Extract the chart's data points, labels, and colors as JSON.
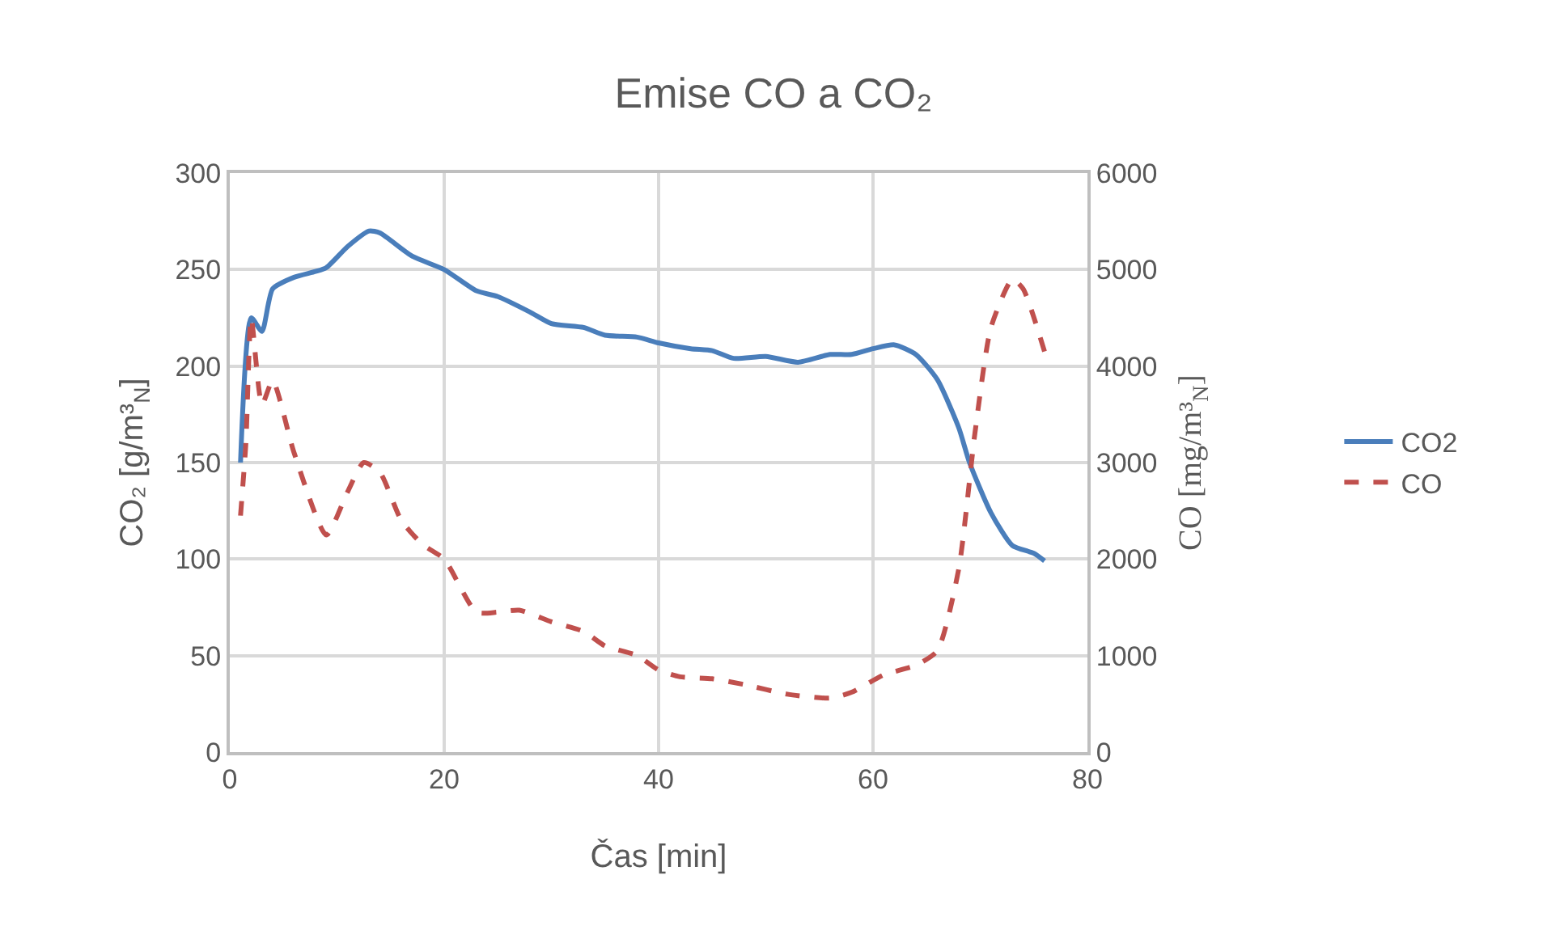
{
  "chart_data": {
    "type": "line",
    "title": "Emise CO a CO₂",
    "xlabel": "Čas [min]",
    "ylabel": "CO₂ [g/m³$_{N}$]",
    "y2label": "CO [mg/m³$_{N}$]",
    "xlim": [
      0,
      80
    ],
    "xticks": [
      0,
      20,
      40,
      60,
      80
    ],
    "ylim": [
      0,
      300
    ],
    "yticks": [
      0,
      50,
      100,
      150,
      200,
      250,
      300
    ],
    "y2lim": [
      0,
      6000
    ],
    "y2ticks": [
      0,
      1000,
      2000,
      3000,
      4000,
      5000,
      6000
    ],
    "grid": true,
    "legend": "right",
    "marker": "none",
    "series": [
      {
        "name": "CO2",
        "color": "#4a7ebb",
        "line_style": "solid",
        "x": [
          1,
          2,
          3,
          4,
          6,
          8,
          9,
          11,
          13,
          14,
          17,
          20,
          23,
          25,
          28,
          30,
          33,
          35,
          38,
          40,
          43,
          45,
          47,
          50,
          53,
          56,
          58,
          60,
          62,
          64,
          66,
          68,
          69,
          71,
          73,
          75,
          76
        ],
        "values": [
          150,
          225,
          218,
          240,
          246,
          249,
          251,
          262,
          270,
          269,
          257,
          250,
          239,
          236,
          228,
          222,
          220,
          216,
          215,
          212,
          209,
          208,
          204,
          205,
          202,
          206,
          206,
          209,
          211,
          206,
          193,
          168,
          150,
          124,
          107,
          103,
          99
        ]
      },
      {
        "name": "CO",
        "color": "#c0504d",
        "line_style": "dashed",
        "axis": "y2",
        "x": [
          1,
          1.5,
          2,
          3,
          4,
          6,
          9,
          11,
          12.5,
          14,
          16,
          18,
          20,
          23,
          25,
          27,
          30,
          33,
          35,
          38,
          40,
          42,
          45,
          48,
          52,
          56,
          58,
          61,
          64,
          66,
          68,
          69.5,
          71,
          73,
          74,
          76
        ],
        "values": [
          2450,
          3200,
          4500,
          3600,
          3850,
          3100,
          2250,
          2700,
          3000,
          2900,
          2400,
          2150,
          2000,
          1450,
          1450,
          1470,
          1350,
          1250,
          1100,
          1000,
          850,
          780,
          760,
          700,
          600,
          560,
          620,
          800,
          900,
          1050,
          1900,
          3300,
          4400,
          4900,
          4800,
          4150
        ]
      }
    ]
  }
}
